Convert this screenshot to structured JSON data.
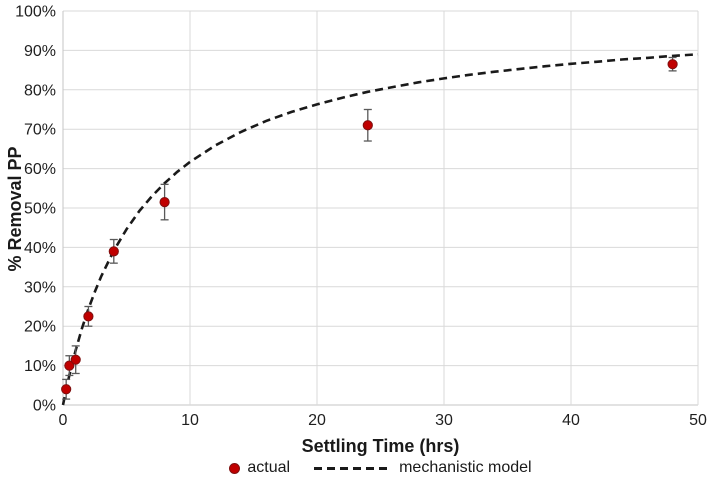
{
  "chart_data": {
    "type": "scatter",
    "title": "",
    "xlabel": "Settling Time (hrs)",
    "ylabel": "% Removal PP",
    "xlim": [
      0,
      50
    ],
    "ylim": [
      0,
      100
    ],
    "x_ticks": [
      0,
      10,
      20,
      30,
      40,
      50
    ],
    "y_ticks": [
      "0%",
      "10%",
      "20%",
      "30%",
      "40%",
      "50%",
      "60%",
      "70%",
      "80%",
      "90%",
      "100%"
    ],
    "grid": true,
    "legend_position": "bottom-center",
    "series": [
      {
        "name": "actual",
        "type": "scatter",
        "marker": "circle",
        "color": "#c00000",
        "error_bar_color": "#595959",
        "x": [
          0.25,
          0.5,
          1,
          2,
          4,
          8,
          24,
          48
        ],
        "y": [
          4,
          10,
          11.5,
          22.5,
          39,
          51.5,
          71,
          86.5
        ],
        "yerr": [
          2.5,
          2.5,
          3.5,
          2.5,
          3,
          4.5,
          4,
          1.7
        ]
      },
      {
        "name": "mechanistic model",
        "type": "line",
        "style": "dashed",
        "color": "#1a1a1a",
        "x": [
          0,
          0.25,
          0.5,
          0.75,
          1,
          1.5,
          2,
          2.5,
          3,
          4,
          5,
          6,
          7,
          8,
          9,
          10,
          12,
          14,
          16,
          18,
          20,
          22,
          24,
          26,
          28,
          30,
          32,
          34,
          36,
          38,
          40,
          42,
          44,
          46,
          48,
          50
        ],
        "y": [
          0,
          3.9,
          7.5,
          10.8,
          13.9,
          19.5,
          24.4,
          28.7,
          32.6,
          39.2,
          44.6,
          49.2,
          53.0,
          56.3,
          59.2,
          61.7,
          65.9,
          69.3,
          72.1,
          74.4,
          76.3,
          78.0,
          79.5,
          80.7,
          81.9,
          82.9,
          83.8,
          84.6,
          85.3,
          86.0,
          86.6,
          87.1,
          87.7,
          88.1,
          88.6,
          89.0
        ]
      }
    ]
  },
  "colors": {
    "gridline": "#d9d9d9",
    "axis_line": "#c6c6c6",
    "tick_label": "#1f1f1f",
    "point_fill": "#c00000",
    "point_stroke": "#7f1010",
    "error_bar": "#595959",
    "model_line": "#1a1a1a"
  }
}
